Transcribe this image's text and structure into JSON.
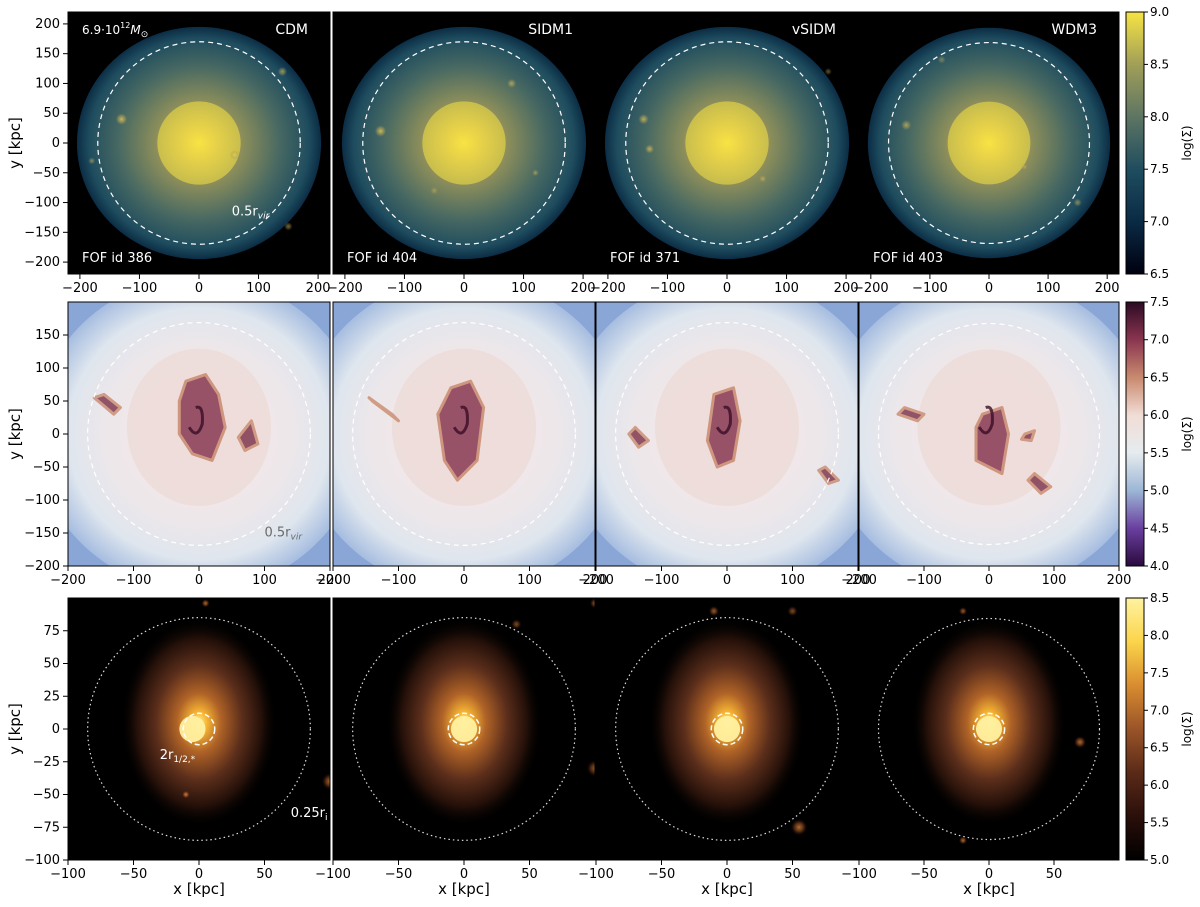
{
  "chart_data": [
    {
      "type": "heatmap",
      "row": "dark_matter",
      "halo_mass_label": "6.9·10",
      "halo_mass_exp": "12",
      "halo_mass_unit": "M",
      "halo_mass_sub": "⊙",
      "panels": [
        {
          "model": "CDM",
          "fof": "FOF id 386"
        },
        {
          "model": "SIDM1",
          "fof": "FOF id 404"
        },
        {
          "model": "vSIDM",
          "fof": "FOF id 371"
        },
        {
          "model": "WDM3",
          "fof": "FOF id 403"
        }
      ],
      "circle_label": "0.5r",
      "circle_label_sub": "vir",
      "circle_radius_kpc": 170,
      "xlim": [
        -220,
        220
      ],
      "ylim": [
        -220,
        220
      ],
      "xticks": [
        -200,
        -100,
        0,
        100,
        200
      ],
      "xticklabels": [
        "−200",
        "−100",
        "0",
        "100",
        "200"
      ],
      "yticks": [
        200,
        150,
        100,
        50,
        0,
        -50,
        -100,
        -150,
        -200
      ],
      "yticklabels": [
        "200",
        "150",
        "100",
        "50",
        "0",
        "−50",
        "−100",
        "−150",
        "−200"
      ],
      "ylabel": "y [kpc]",
      "colorbar": {
        "label": "log(Σ)",
        "range": [
          6.5,
          9.0
        ],
        "ticks": [
          9.0,
          8.5,
          8.0,
          7.5,
          7.0,
          6.5
        ],
        "ticklabels": [
          "9.0",
          "8.5",
          "8.0",
          "7.5",
          "7.0",
          "6.5"
        ],
        "colormap": "cividis-like",
        "colors": [
          "#000010",
          "#0a2a44",
          "#1f4d5f",
          "#5d7563",
          "#a19f58",
          "#f7e443"
        ]
      }
    },
    {
      "type": "heatmap",
      "row": "gas",
      "circle_label": "0.5r",
      "circle_label_sub": "vir",
      "circle_radius_kpc": 170,
      "xlim": [
        -200,
        200
      ],
      "ylim": [
        -200,
        200
      ],
      "xticks": [
        -200,
        -100,
        0,
        100,
        200
      ],
      "xticklabels": [
        "−200",
        "−100",
        "0",
        "100",
        "200"
      ],
      "yticks": [
        150,
        100,
        50,
        0,
        -50,
        -100,
        -150,
        -200
      ],
      "yticklabels": [
        "150",
        "100",
        "50",
        "0",
        "−50",
        "−100",
        "−150",
        "−200"
      ],
      "ylabel": "y [kpc]",
      "colorbar": {
        "label": "log(Σ)",
        "range": [
          4.0,
          7.5
        ],
        "ticks": [
          7.5,
          7.0,
          6.5,
          6.0,
          5.5,
          5.0,
          4.5,
          4.0
        ],
        "ticklabels": [
          "7.5",
          "7.0",
          "6.5",
          "6.0",
          "5.5",
          "5.0",
          "4.5",
          "4.0"
        ],
        "colormap": "twilight-like",
        "colors": [
          "#2b0a3d",
          "#6a3fa0",
          "#9cb6d6",
          "#e6ecef",
          "#f1ddd6",
          "#c98a6e",
          "#8a3550",
          "#2c0a23"
        ]
      }
    },
    {
      "type": "heatmap",
      "row": "stars",
      "outer_label": "0.25r",
      "outer_label_sub": "i",
      "inner_label": "2r",
      "inner_label_sub": "1/2,*",
      "outer_radius_kpc": 85,
      "inner_radius_kpc": 12,
      "xlim": [
        -100,
        100
      ],
      "ylim": [
        -100,
        100
      ],
      "xticks": [
        -100,
        -50,
        0,
        50
      ],
      "xticklabels": [
        "−100",
        "−50",
        "0",
        "50"
      ],
      "yticks": [
        75,
        50,
        25,
        0,
        -25,
        -50,
        -75,
        -100
      ],
      "yticklabels": [
        "75",
        "50",
        "25",
        "0",
        "−25",
        "−50",
        "−75",
        "−100"
      ],
      "xlabel": "x [kpc]",
      "ylabel": "y [kpc]",
      "colorbar": {
        "label": "log(Σ)",
        "range": [
          5.0,
          8.5
        ],
        "ticks": [
          8.5,
          8.0,
          7.5,
          7.0,
          6.5,
          6.0,
          5.5,
          5.0
        ],
        "ticklabels": [
          "8.5",
          "8.0",
          "7.5",
          "7.0",
          "6.5",
          "6.0",
          "5.5",
          "5.0"
        ],
        "colormap": "afmhot-like",
        "colors": [
          "#000000",
          "#2a0f0a",
          "#5a2a18",
          "#9a5428",
          "#d98c30",
          "#fbd54a",
          "#fff2a0"
        ]
      }
    }
  ]
}
